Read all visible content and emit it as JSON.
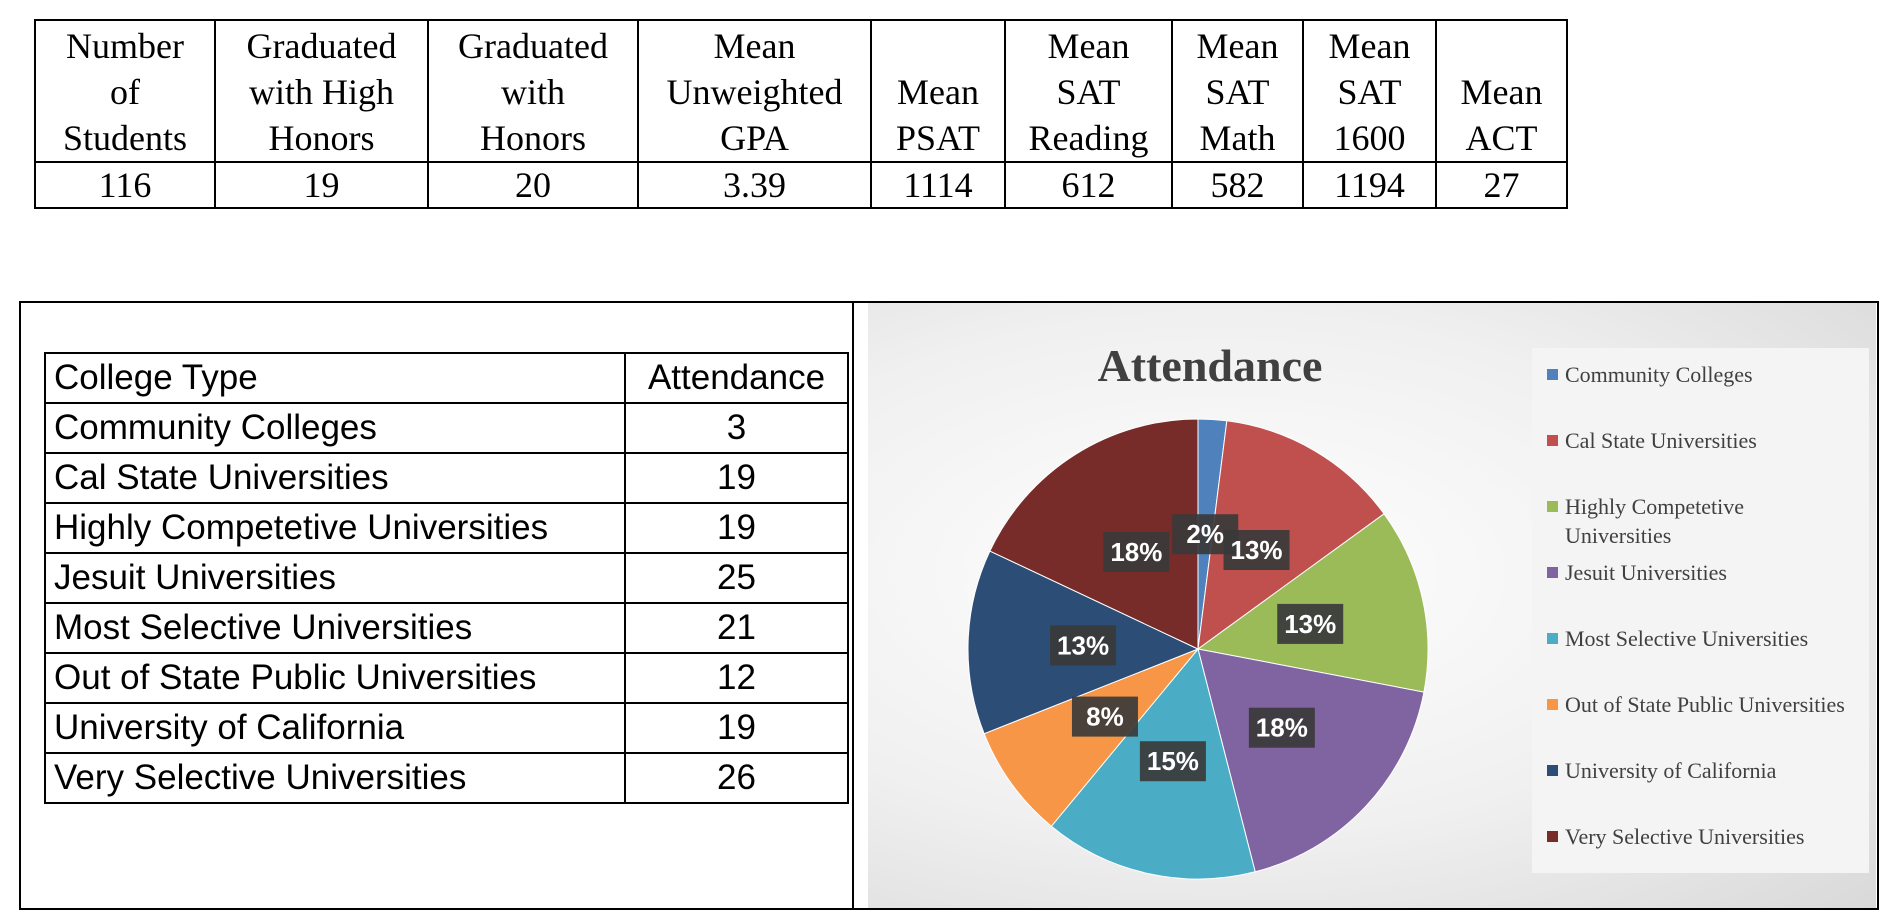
{
  "summary_table": {
    "header": [
      [
        "Number",
        "of",
        "Students"
      ],
      [
        "Graduated",
        "with High",
        "Honors"
      ],
      [
        "Graduated",
        "with",
        "Honors"
      ],
      [
        "Mean",
        "Unweighted",
        "GPA"
      ],
      [
        "Mean",
        "PSAT"
      ],
      [
        "Mean",
        "SAT",
        "Reading"
      ],
      [
        "Mean",
        "SAT",
        "Math"
      ],
      [
        "Mean",
        "SAT",
        "1600"
      ],
      [
        "Mean",
        "ACT"
      ]
    ],
    "row": [
      116,
      19,
      20,
      3.39,
      1114,
      612,
      582,
      1194,
      27
    ]
  },
  "college_table": {
    "header": [
      "College Type",
      "Attendance"
    ],
    "rows": [
      [
        "Community Colleges",
        3
      ],
      [
        "Cal State Universities",
        19
      ],
      [
        "Highly Competetive Universities",
        19
      ],
      [
        "Jesuit Universities",
        25
      ],
      [
        "Most Selective Universities",
        21
      ],
      [
        "Out of State Public Universities",
        12
      ],
      [
        "University of California",
        19
      ],
      [
        "Very Selective Universities",
        26
      ]
    ]
  },
  "chart_data": {
    "type": "pie",
    "title": "Attendance",
    "categories": [
      "Community Colleges",
      "Cal State Universities",
      "Highly Competetive Universities",
      "Jesuit Universities",
      "Most Selective Universities",
      "Out of State Public Universities",
      "University of California",
      "Very Selective Universities"
    ],
    "values": [
      2,
      13,
      13,
      18,
      15,
      8,
      13,
      18
    ],
    "value_labels": [
      "2%",
      "13%",
      "13%",
      "18%",
      "15%",
      "8%",
      "13%",
      "18%"
    ],
    "colors": [
      "#4f81bd",
      "#c0504d",
      "#9bbb59",
      "#8064a2",
      "#4bacc6",
      "#f79646",
      "#2c4d75",
      "#772c2a"
    ],
    "legend": "right"
  }
}
